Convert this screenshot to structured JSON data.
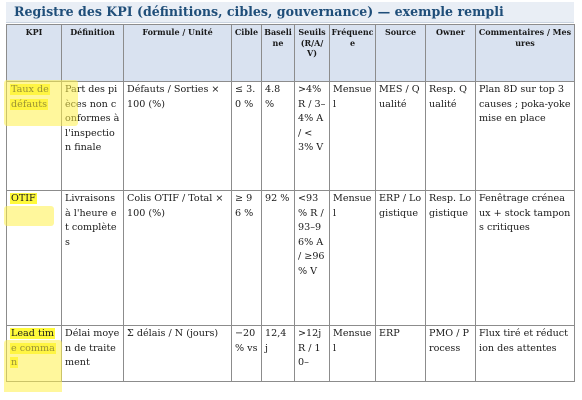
{
  "title": "Registre des KPI (définitions, cibles, gouvernance) — exemple rempli",
  "columns": [
    "KPI",
    "Définition",
    "Formule / Unité",
    "Cible",
    "Baseline",
    "Seuils (R/A/V)",
    "Fréquence",
    "Source",
    "Owner",
    "Commentaires / Mesures"
  ],
  "rows": [
    {
      "kpi": "Taux de défauts",
      "definition": "Part des pièces non conformes à l'inspection finale",
      "formula": "Défauts / Sorties × 100 (%)",
      "target": "≤ 3.0 %",
      "baseline": "4.8 %",
      "thresholds": ">4% R / 3–4% A / <3% V",
      "frequency": "Mensuel",
      "source": "MES / Qualité",
      "owner": "Resp. Qualité",
      "comments": "Plan 8D sur top 3 causes ; poka-yoke mise en place"
    },
    {
      "kpi": "OTIF",
      "definition": "Livraisons à l'heure et complètes",
      "formula": "Colis OTIF / Total × 100 (%)",
      "target": "≥ 96 %",
      "baseline": "92 %",
      "thresholds": "<93 % R / 93–96% A / ≥96 % V",
      "frequency": "Mensuel",
      "source": "ERP / Logistique",
      "owner": "Resp. Logistique",
      "comments": "Fenêtrage créneaux + stock tampons critiques"
    },
    {
      "kpi": "Lead time comman",
      "definition": "Délai moyen de traitement",
      "formula": "Σ délais / N (jours)",
      "target": "−20 % vs",
      "baseline": "12,4 j",
      "thresholds": ">12j R / 10–",
      "frequency": "Mensuel",
      "source": "ERP",
      "owner": "PMO / Process",
      "comments": "Flux tiré et réduction des attentes"
    }
  ],
  "colors": {
    "title": "#1f4e79",
    "header_bg": "#d9e2f0",
    "highlight": "#fff14a",
    "border": "#8c8c8c"
  }
}
